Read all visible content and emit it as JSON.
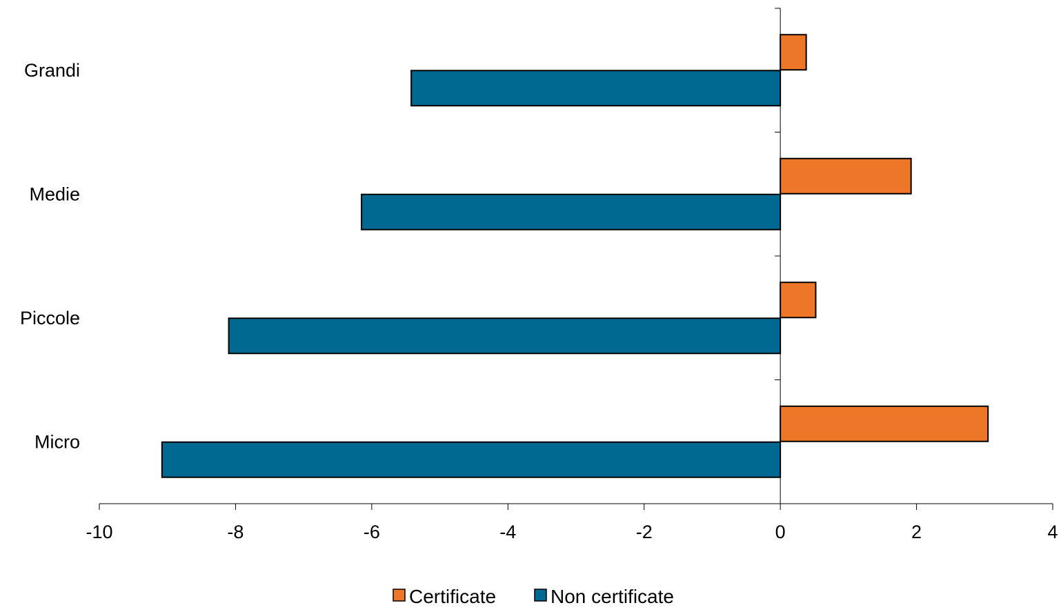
{
  "chart_data": {
    "type": "bar",
    "orientation": "horizontal",
    "categories": [
      "Micro",
      "Piccole",
      "Medie",
      "Grandi"
    ],
    "series": [
      {
        "name": "Certificate",
        "color": "#EE7628",
        "values": [
          3.05,
          0.52,
          1.92,
          0.38
        ]
      },
      {
        "name": "Non certificate",
        "color": "#006991",
        "values": [
          -9.08,
          -8.1,
          -6.15,
          -5.42
        ]
      }
    ],
    "xlim": [
      -10,
      4
    ],
    "xticks": [
      "-10",
      "-8",
      "-6",
      "-4",
      "-2",
      "0",
      "2",
      "4"
    ],
    "title": "",
    "xlabel": "",
    "ylabel": "",
    "grid": false,
    "legend_position": "bottom-center"
  }
}
